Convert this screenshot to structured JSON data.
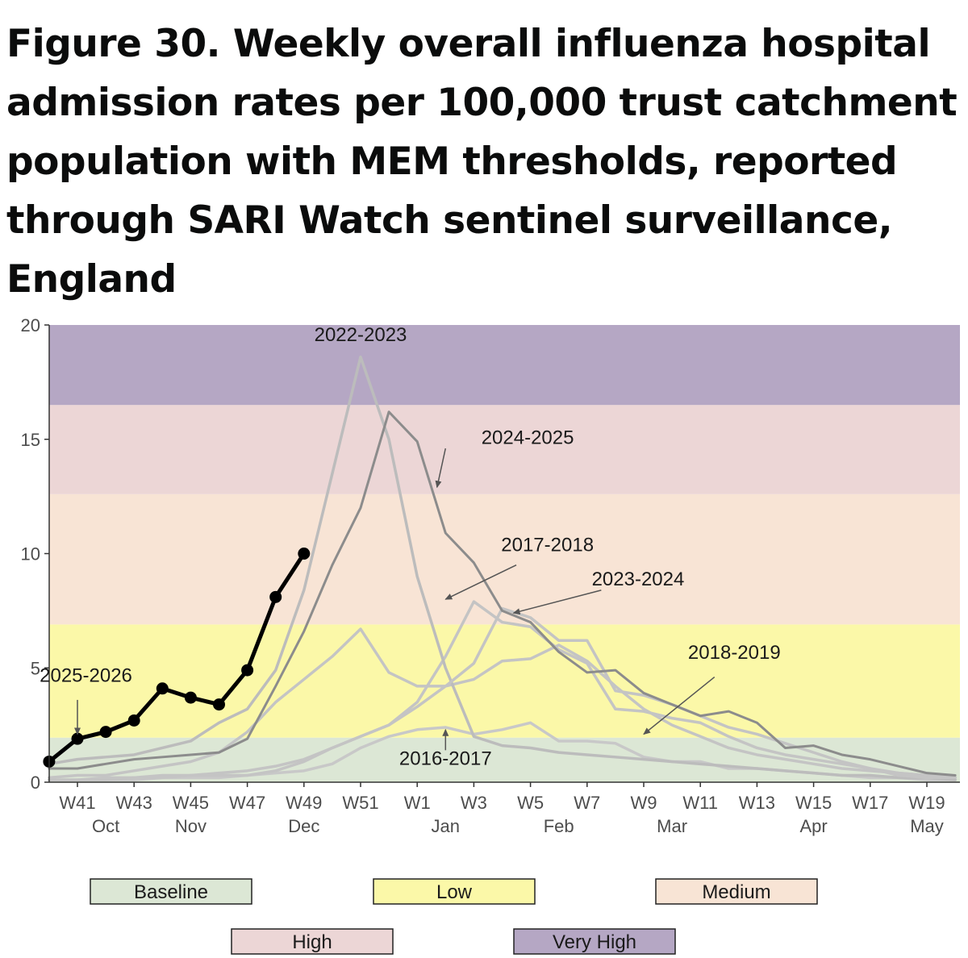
{
  "title_lines": [
    "Figure 30. Weekly overall influenza hospital",
    "admission rates per 100,000 trust catchment",
    "population with MEM thresholds, reported",
    "through SARI Watch sentinel surveillance,",
    "England"
  ],
  "chart_data": {
    "type": "line",
    "title": "Figure 30. Weekly overall influenza hospital admission rates per 100,000 trust catchment population with MEM thresholds, reported through SARI Watch sentinel surveillance, England",
    "xlabel": "",
    "ylabel": "",
    "ylim": [
      0,
      20
    ],
    "yticks": [
      0,
      5,
      10,
      15,
      20
    ],
    "x_index_range": [
      0,
      32
    ],
    "week_ticks": [
      {
        "i": 1,
        "label": "W41"
      },
      {
        "i": 3,
        "label": "W43"
      },
      {
        "i": 5,
        "label": "W45"
      },
      {
        "i": 7,
        "label": "W47"
      },
      {
        "i": 9,
        "label": "W49"
      },
      {
        "i": 11,
        "label": "W51"
      },
      {
        "i": 13,
        "label": "W1"
      },
      {
        "i": 15,
        "label": "W3"
      },
      {
        "i": 17,
        "label": "W5"
      },
      {
        "i": 19,
        "label": "W7"
      },
      {
        "i": 21,
        "label": "W9"
      },
      {
        "i": 23,
        "label": "W11"
      },
      {
        "i": 25,
        "label": "W13"
      },
      {
        "i": 27,
        "label": "W15"
      },
      {
        "i": 29,
        "label": "W17"
      },
      {
        "i": 31,
        "label": "W19"
      }
    ],
    "month_ticks": [
      {
        "i": 2,
        "label": "Oct"
      },
      {
        "i": 5,
        "label": "Nov"
      },
      {
        "i": 9,
        "label": "Dec"
      },
      {
        "i": 14,
        "label": "Jan"
      },
      {
        "i": 18,
        "label": "Feb"
      },
      {
        "i": 22,
        "label": "Mar"
      },
      {
        "i": 27,
        "label": "Apr"
      },
      {
        "i": 31,
        "label": "May"
      }
    ],
    "thresholds": [
      {
        "name": "Baseline",
        "from": 0,
        "to": 1.95,
        "color": "#dce7d5"
      },
      {
        "name": "Low",
        "from": 1.95,
        "to": 6.9,
        "color": "#fbf8a8"
      },
      {
        "name": "Medium",
        "from": 6.9,
        "to": 12.6,
        "color": "#f8e4d5"
      },
      {
        "name": "High",
        "from": 12.6,
        "to": 16.5,
        "color": "#ecd6d6"
      },
      {
        "name": "Very High",
        "from": 16.5,
        "to": 20,
        "color": "#b5a7c4"
      }
    ],
    "series": [
      {
        "name": "2016-2017",
        "color": "#c8c8c8",
        "width": 3.5,
        "values": [
          0.1,
          0.1,
          0.1,
          0.1,
          0.2,
          0.2,
          0.2,
          0.3,
          0.4,
          0.5,
          0.8,
          1.5,
          2.0,
          2.3,
          2.4,
          2.1,
          2.3,
          2.6,
          1.8,
          1.8,
          1.7,
          1.1,
          0.9,
          0.9,
          0.6,
          0.6,
          0.5,
          0.4,
          0.3,
          0.2,
          0.2,
          0.1,
          0.1
        ]
      },
      {
        "name": "2017-2018",
        "color": "#c4c4c4",
        "width": 3.5,
        "values": [
          0.1,
          0.1,
          0.1,
          0.2,
          0.2,
          0.3,
          0.3,
          0.3,
          0.5,
          0.9,
          1.5,
          2.0,
          2.5,
          3.5,
          5.5,
          7.9,
          7.0,
          6.8,
          5.8,
          5.2,
          3.2,
          3.1,
          2.8,
          2.6,
          2.0,
          1.5,
          1.2,
          1.0,
          0.8,
          0.6,
          0.4,
          0.3,
          0.2
        ]
      },
      {
        "name": "2018-2019",
        "color": "#c4c4c4",
        "width": 3.5,
        "values": [
          0.1,
          0.1,
          0.2,
          0.2,
          0.3,
          0.3,
          0.4,
          0.5,
          0.7,
          1.0,
          1.5,
          2.0,
          2.5,
          3.3,
          4.2,
          4.5,
          5.3,
          5.4,
          6.0,
          5.3,
          4.2,
          3.2,
          2.5,
          2.0,
          1.5,
          1.2,
          1.0,
          0.8,
          0.6,
          0.5,
          0.4,
          0.3,
          0.2
        ]
      },
      {
        "name": "2022-2023",
        "color": "#bcbcbc",
        "width": 3.5,
        "values": [
          0.8,
          1.0,
          1.1,
          1.2,
          1.5,
          1.8,
          2.6,
          3.2,
          4.9,
          8.4,
          13.5,
          18.6,
          15.0,
          9.0,
          5.0,
          2.0,
          1.6,
          1.5,
          1.3,
          1.2,
          1.1,
          1.0,
          0.9,
          0.8,
          0.7,
          0.6,
          0.5,
          0.4,
          0.3,
          0.3,
          0.2,
          0.2,
          0.1
        ]
      },
      {
        "name": "2023-2024",
        "color": "#c4c4c4",
        "width": 3.5,
        "values": [
          0.2,
          0.3,
          0.3,
          0.5,
          0.7,
          0.9,
          1.3,
          2.2,
          3.5,
          4.5,
          5.5,
          6.7,
          4.8,
          4.2,
          4.2,
          5.2,
          7.6,
          7.2,
          6.2,
          6.2,
          4.0,
          3.8,
          3.4,
          2.9,
          2.4,
          2.1,
          1.7,
          1.3,
          0.9,
          0.6,
          0.3,
          0.2,
          0.2
        ]
      },
      {
        "name": "2024-2025",
        "color": "#8c8c8c",
        "width": 3,
        "values": [
          0.6,
          0.6,
          0.8,
          1.0,
          1.1,
          1.2,
          1.3,
          1.9,
          4.2,
          6.6,
          9.5,
          12.0,
          16.2,
          14.9,
          10.9,
          9.6,
          7.5,
          7.0,
          5.7,
          4.8,
          4.9,
          3.9,
          3.4,
          2.9,
          3.1,
          2.6,
          1.5,
          1.6,
          1.2,
          1.0,
          0.7,
          0.4,
          0.3
        ]
      },
      {
        "name": "2025-2026",
        "color": "#000000",
        "width": 5,
        "markers": true,
        "values": [
          0.9,
          1.9,
          2.2,
          2.7,
          4.1,
          3.7,
          3.4,
          4.9,
          8.1,
          10.0
        ]
      }
    ],
    "annotations": [
      {
        "label": "2022-2023",
        "tx": 11.0,
        "ty": 19.3
      },
      {
        "label": "2024-2025",
        "tx": 16.9,
        "ty": 14.8,
        "ax": 14.0,
        "ay": 14.6,
        "bx": 13.7,
        "by": 12.9
      },
      {
        "label": "2017-2018",
        "tx": 17.6,
        "ty": 10.1,
        "ax": 16.5,
        "ay": 9.5,
        "bx": 14.0,
        "by": 8.0
      },
      {
        "label": "2023-2024",
        "tx": 20.8,
        "ty": 8.6,
        "ax": 19.5,
        "ay": 8.4,
        "bx": 16.4,
        "by": 7.4
      },
      {
        "label": "2018-2019",
        "tx": 24.2,
        "ty": 5.4,
        "ax": 23.5,
        "ay": 4.6,
        "bx": 21.0,
        "by": 2.1
      },
      {
        "label": "2016-2017",
        "tx": 14.0,
        "ty": 0.75,
        "ax": 14.0,
        "ay": 1.4,
        "bx": 14.0,
        "by": 2.3
      },
      {
        "label": "2025-2026",
        "tx": 1.3,
        "ty": 4.4,
        "ax": 1.0,
        "ay": 3.6,
        "bx": 1.0,
        "by": 2.1
      }
    ]
  }
}
